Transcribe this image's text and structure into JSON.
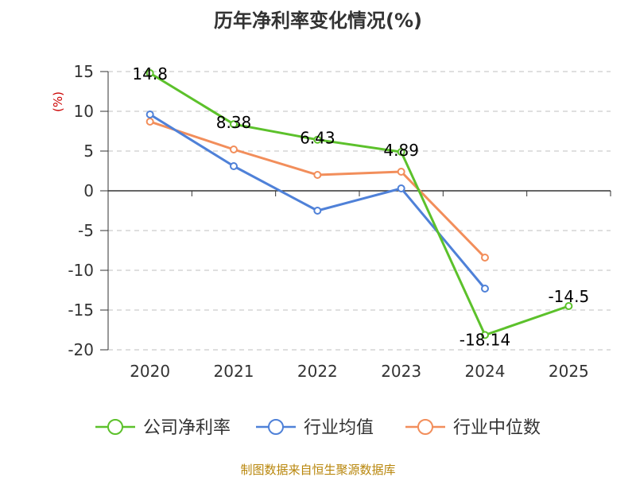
{
  "chart_data": {
    "type": "line",
    "title": "历年净利率变化情况(%)",
    "ylabel": "(%)",
    "xlabel": "",
    "categories": [
      "2020",
      "2021",
      "2022",
      "2023",
      "2024",
      "2025"
    ],
    "ylim": [
      -20,
      15
    ],
    "yticks": [
      15,
      10,
      5,
      0,
      -5,
      -10,
      -15,
      -20
    ],
    "grid": true,
    "legend_position": "bottom",
    "series": [
      {
        "name": "公司净利率",
        "color": "#5cc12b",
        "values": [
          14.8,
          8.38,
          6.43,
          4.89,
          -18.14,
          -14.5
        ],
        "labels": [
          "14.8",
          "8.38",
          "6.43",
          "4.89",
          "-18.14",
          "-14.5"
        ]
      },
      {
        "name": "行业均值",
        "color": "#4f81d8",
        "values": [
          9.6,
          3.1,
          -2.5,
          0.3,
          -12.3,
          null
        ]
      },
      {
        "name": "行业中位数",
        "color": "#f28e5b",
        "values": [
          8.7,
          5.2,
          2.0,
          2.4,
          -8.4,
          null
        ]
      }
    ],
    "source": "制图数据来自恒生聚源数据库"
  }
}
